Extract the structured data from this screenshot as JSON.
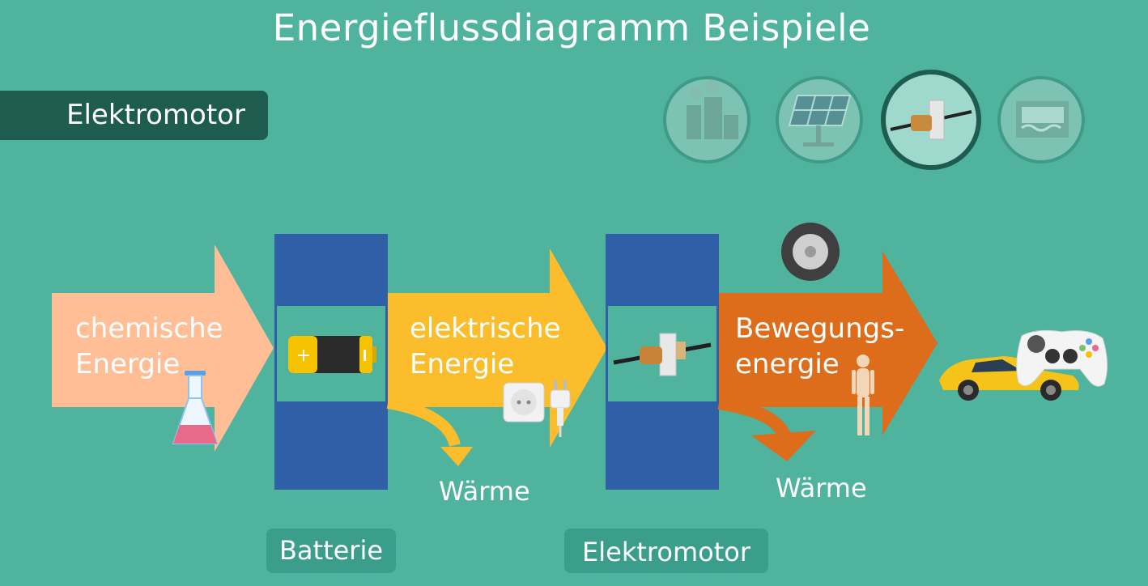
{
  "title": "Energieflussdiagramm Beispiele",
  "section": "Elektromotor",
  "thumbnails": [
    {
      "icon": "power-plant-icon",
      "active": false
    },
    {
      "icon": "solar-panel-icon",
      "active": false
    },
    {
      "icon": "electric-motor-icon",
      "active": true
    },
    {
      "icon": "hydro-dam-icon",
      "active": false
    }
  ],
  "flows": {
    "chemical": {
      "line1": "chemische",
      "line2": "Energie"
    },
    "electrical": {
      "line1": "elektrische",
      "line2": "Energie"
    },
    "kinetic": {
      "line1": "Bewegungs-",
      "line2": "energie"
    }
  },
  "losses": {
    "left": "Wärme",
    "right": "Wärme"
  },
  "converters": {
    "battery": "Batterie",
    "motor": "Elektromotor"
  },
  "colors": {
    "background": "#4fb39e",
    "chemical": "#ffbe95",
    "electrical": "#fbbd2b",
    "kinetic": "#dd6d1a",
    "converter": "#2f5fa6"
  }
}
